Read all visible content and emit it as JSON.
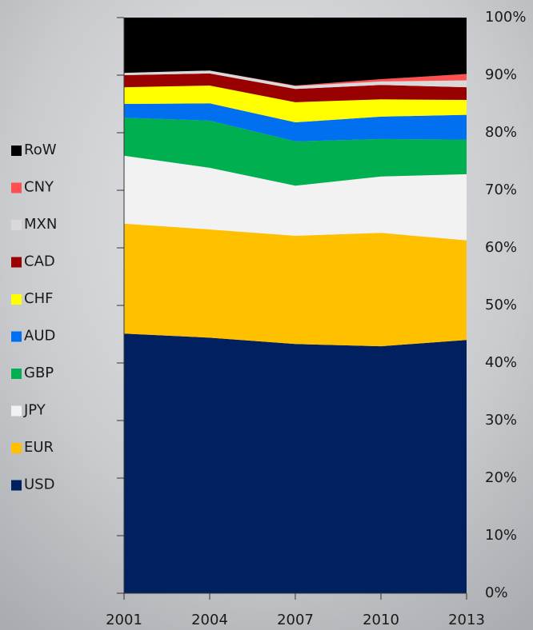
{
  "chart_data": {
    "type": "stacked_area",
    "x": [
      2001,
      2004,
      2007,
      2010,
      2013
    ],
    "xlim": [
      2001,
      2013
    ],
    "xticks": [
      2001,
      2004,
      2007,
      2010,
      2013
    ],
    "ylim": [
      0,
      100
    ],
    "yticks": [
      {
        "value": 0,
        "label": "0%"
      },
      {
        "value": 10,
        "label": "10%"
      },
      {
        "value": 20,
        "label": "20%"
      },
      {
        "value": 30,
        "label": "30%"
      },
      {
        "value": 40,
        "label": "40%"
      },
      {
        "value": 50,
        "label": "50%"
      },
      {
        "value": 60,
        "label": "60%"
      },
      {
        "value": 70,
        "label": "70%"
      },
      {
        "value": 80,
        "label": "80%"
      },
      {
        "value": 90,
        "label": "90%"
      },
      {
        "value": 100,
        "label": "100%"
      }
    ],
    "legend": "left",
    "series": [
      {
        "name": "USD",
        "color": "#002060",
        "values": [
          45.1,
          44.4,
          43.3,
          42.9,
          44.0
        ]
      },
      {
        "name": "EUR",
        "color": "#ffc000",
        "values": [
          19.1,
          18.8,
          18.8,
          19.7,
          17.3
        ]
      },
      {
        "name": "JPY",
        "color": "#f2f2f2",
        "values": [
          11.8,
          10.7,
          8.7,
          9.8,
          11.5
        ]
      },
      {
        "name": "GBP",
        "color": "#00b050",
        "values": [
          6.6,
          8.2,
          7.7,
          6.5,
          6.0
        ]
      },
      {
        "name": "AUD",
        "color": "#0070f0",
        "values": [
          2.4,
          3.0,
          3.3,
          3.9,
          4.3
        ]
      },
      {
        "name": "CHF",
        "color": "#ffff00",
        "values": [
          2.9,
          3.1,
          3.5,
          3.0,
          2.6
        ]
      },
      {
        "name": "CAD",
        "color": "#990000",
        "values": [
          2.1,
          2.1,
          2.3,
          2.5,
          2.2
        ]
      },
      {
        "name": "MXN",
        "color": "#d9d9d9",
        "values": [
          0.4,
          0.5,
          0.5,
          0.6,
          1.2
        ]
      },
      {
        "name": "CNY",
        "color": "#ff5050",
        "values": [
          0,
          0,
          0.1,
          0.4,
          1.1
        ]
      },
      {
        "name": "RoW",
        "color": "#000000",
        "values": [
          9.6,
          9.2,
          11.8,
          10.7,
          9.8
        ]
      }
    ]
  }
}
